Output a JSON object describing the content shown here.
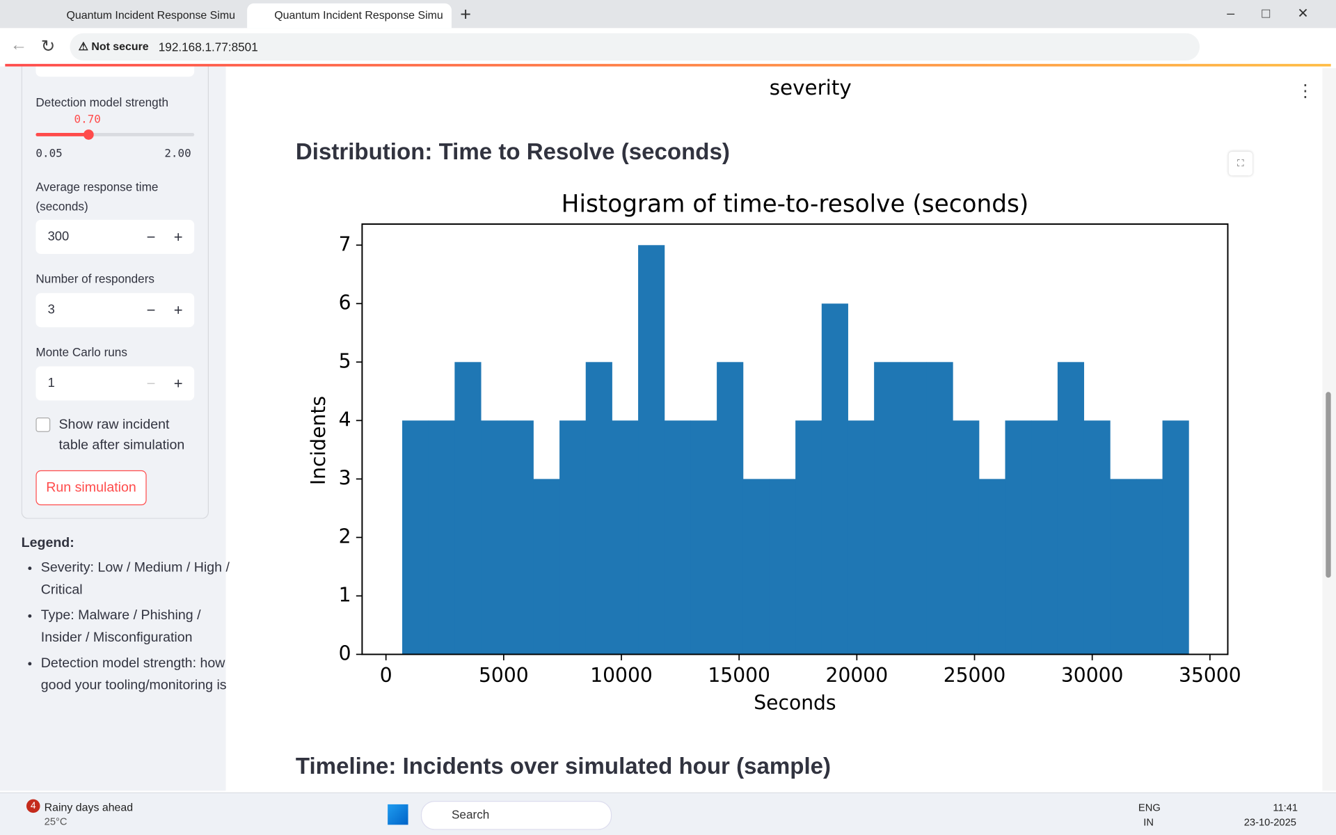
{
  "browser": {
    "tabs": [
      "Quantum Incident Response Simu",
      "Quantum Incident Response Simu"
    ],
    "security": "Not secure",
    "address": "192.168.1.77:8501"
  },
  "sidebar": {
    "slider": {
      "label": "Detection model strength",
      "value": "0.70",
      "min": "0.05",
      "max": "2.00"
    },
    "inputs": [
      {
        "label": "Average response time (seconds)",
        "value": "300"
      },
      {
        "label": "Number of responders",
        "value": "3"
      },
      {
        "label": "Monte Carlo runs",
        "value": "1"
      }
    ],
    "checkbox": "Show raw incident table after simulation",
    "button": "Run simulation",
    "legend_title": "Legend:",
    "legend_items": [
      "Severity: Low / Medium / High / Critical",
      "Type: Malware / Phishing / Insider / Misconfiguration",
      "Detection model strength: how good your tooling/monitoring is"
    ]
  },
  "main": {
    "prev_axis_label": "severity",
    "section_title": "Distribution: Time to Resolve (seconds)",
    "next_section_title": "Timeline: Incidents over simulated hour (sample)"
  },
  "chart_data": {
    "type": "histogram",
    "title": "Histogram of time-to-resolve (seconds)",
    "x_label": "Seconds",
    "y_label": "Incidents",
    "color": "#1f77b4",
    "bins": [
      690,
      1803.5,
      2917,
      4030.5,
      5144,
      6257.5,
      7371,
      8484.5,
      9598,
      10711.5,
      11825,
      12938.5,
      14052,
      15165.5,
      16279,
      17392.5,
      18506,
      19619.5,
      20733,
      21846.5,
      22960,
      24073.5,
      25187,
      26300.5,
      27414,
      28527.5,
      29641,
      30754.5,
      31868,
      32981.5,
      34095
    ],
    "values": [
      4,
      4,
      5,
      4,
      4,
      3,
      4,
      5,
      4,
      7,
      4,
      4,
      5,
      3,
      3,
      4,
      6,
      4,
      5,
      5,
      5,
      4,
      3,
      4,
      4,
      5,
      4,
      3,
      3,
      4
    ],
    "xlim": [
      -1013,
      35758
    ],
    "ylim": [
      0,
      7.36
    ],
    "xticks": [
      0,
      5000,
      10000,
      15000,
      20000,
      25000,
      30000,
      35000
    ],
    "yticks": [
      0,
      1,
      2,
      3,
      4,
      5,
      6,
      7
    ]
  },
  "taskbar": {
    "weather_badge": "4",
    "weather": "Rainy days ahead",
    "temperature": "25°C",
    "search": "Search",
    "language": "ENG",
    "region": "IN",
    "time": "11:41",
    "date": "23-10-2025"
  }
}
